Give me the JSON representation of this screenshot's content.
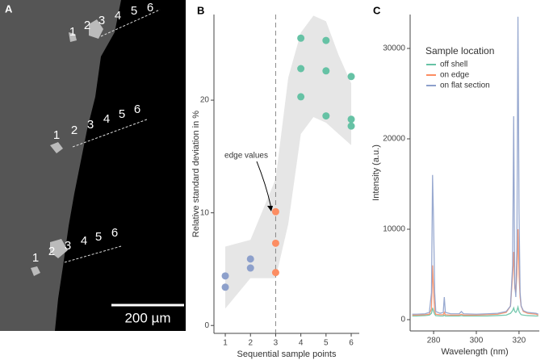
{
  "micrograph": {
    "label": "A",
    "marker_groups": [
      [
        "1",
        "2",
        "3",
        "4",
        "5",
        "6"
      ],
      [
        "1",
        "2",
        "3",
        "4",
        "5",
        "6"
      ],
      [
        "1",
        "2",
        "3",
        "4",
        "5",
        "6"
      ]
    ],
    "scale_bar": "200 µm"
  },
  "chart_data": [
    {
      "type": "scatter",
      "panel": "B",
      "xlabel": "Sequential sample points",
      "ylabel": "Relative standard deviation in %",
      "xlim": [
        0.55,
        6.32
      ],
      "ylim": [
        -0.7,
        27.6
      ],
      "xticks": [
        1,
        2,
        3,
        4,
        5,
        6
      ],
      "yticks": [
        0,
        10,
        20
      ],
      "series": [
        {
          "color": "#8da0cb",
          "x": [
            1,
            1,
            2,
            2
          ],
          "values": [
            4.4,
            3.4,
            5.9,
            5.1
          ]
        },
        {
          "color": "#fc8d62",
          "x": [
            3,
            3,
            3
          ],
          "values": [
            10.1,
            7.3,
            4.7
          ]
        },
        {
          "color": "#66c2a5",
          "x": [
            4,
            4,
            4,
            5,
            5,
            5,
            6,
            6,
            6
          ],
          "values": [
            25.5,
            22.8,
            20.3,
            25.3,
            22.6,
            18.6,
            22.1,
            18.3,
            17.7
          ]
        }
      ],
      "band": {
        "color": "#e6e6e6",
        "x": [
          1,
          2,
          3,
          3.5,
          4,
          4.5,
          5,
          5.5,
          6
        ],
        "lower": [
          1.5,
          4.2,
          4.2,
          9,
          17,
          18.5,
          18,
          17,
          16
        ],
        "upper": [
          7,
          7.6,
          13,
          22,
          26,
          27.5,
          27,
          24,
          21.5
        ]
      },
      "vline": 3,
      "annotation": "edge values"
    },
    {
      "type": "line",
      "panel": "C",
      "xlabel": "Wavelength (nm)",
      "ylabel": "Intensity (a.u.)",
      "legend_title": "Sample location",
      "legend": "upper-left",
      "xlim": [
        269,
        329.5
      ],
      "ylim": [
        -1250,
        33750
      ],
      "xticks": [
        280,
        300,
        320
      ],
      "yticks": [
        0,
        10000,
        20000,
        30000
      ],
      "x": [
        270,
        272,
        276,
        278,
        279,
        279.5,
        280,
        280.5,
        281,
        283,
        284.5,
        285,
        285.5,
        288,
        292,
        293,
        294,
        300,
        305,
        310,
        314,
        316,
        317,
        317.5,
        318,
        318.5,
        319,
        319.5,
        320,
        320.5,
        321,
        322,
        324,
        328,
        329
      ],
      "series": [
        {
          "name": "off shell",
          "color": "#66c2a5",
          "values": [
            400,
            400,
            450,
            500,
            700,
            1300,
            900,
            600,
            450,
            400,
            400,
            500,
            400,
            400,
            400,
            450,
            400,
            400,
            400,
            450,
            500,
            700,
            1000,
            1300,
            900,
            800,
            1000,
            1400,
            900,
            700,
            550,
            500,
            450,
            400,
            400
          ]
        },
        {
          "name": "on edge",
          "color": "#fc8d62",
          "values": [
            500,
            500,
            550,
            600,
            1200,
            6000,
            3000,
            1000,
            600,
            550,
            550,
            800,
            550,
            500,
            500,
            600,
            500,
            500,
            550,
            600,
            800,
            1500,
            5000,
            7500,
            3500,
            3000,
            5000,
            10000,
            5000,
            2500,
            1500,
            900,
            700,
            600,
            500
          ]
        },
        {
          "name": "on flat section",
          "color": "#8da0cb",
          "values": [
            600,
            600,
            650,
            800,
            3000,
            16000,
            10500,
            3000,
            900,
            700,
            800,
            2500,
            800,
            650,
            650,
            900,
            650,
            600,
            650,
            700,
            900,
            1500,
            6000,
            22500,
            4000,
            2500,
            8000,
            33500,
            12000,
            3000,
            1500,
            1000,
            800,
            700,
            600
          ]
        }
      ]
    }
  ]
}
